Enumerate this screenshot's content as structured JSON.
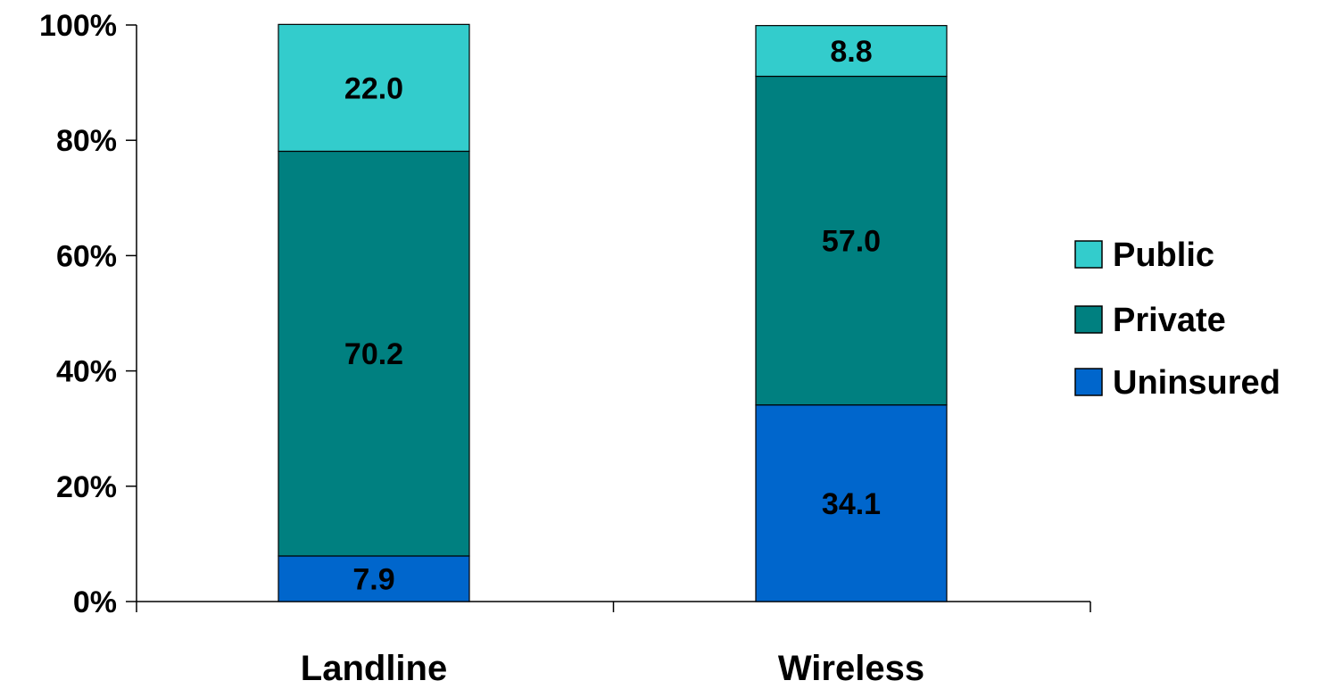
{
  "chart_data": {
    "type": "bar",
    "stacked": true,
    "categories": [
      "Landline",
      "Wireless"
    ],
    "series": [
      {
        "name": "Uninsured",
        "values": [
          7.9,
          34.1
        ],
        "color": "#0066CC"
      },
      {
        "name": "Private",
        "values": [
          70.2,
          57.0
        ],
        "color": "#008080"
      },
      {
        "name": "Public",
        "values": [
          22.0,
          8.8
        ],
        "color": "#33CCCC"
      }
    ],
    "value_labels": [
      [
        "7.9",
        "34.1"
      ],
      [
        "70.2",
        "57.0"
      ],
      [
        "22.0",
        "8.8"
      ]
    ],
    "yticks": [
      "0%",
      "20%",
      "40%",
      "60%",
      "80%",
      "100%"
    ],
    "ylim": [
      0,
      100
    ],
    "legend": {
      "position": "right",
      "order": [
        "Public",
        "Private",
        "Uninsured"
      ]
    },
    "grid": false
  }
}
